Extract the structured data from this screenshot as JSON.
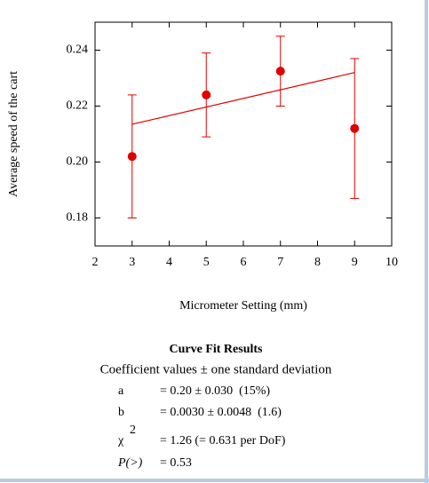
{
  "chart_data": {
    "type": "scatter",
    "x_label": "Micrometer Setting (mm)",
    "y_label": "Average speed of the cart",
    "series": [
      {
        "color": "#e00000",
        "x": [
          3,
          5,
          7,
          9
        ],
        "values": [
          0.202,
          0.224,
          0.2325,
          0.212
        ],
        "errors": [
          0.022,
          0.015,
          0.0125,
          0.025
        ]
      },
      {
        "type": "line",
        "color": "#e00000",
        "x": [
          3,
          9
        ],
        "values": [
          0.2135,
          0.232
        ]
      }
    ],
    "xlim": [
      2,
      10
    ],
    "xticks": [
      2,
      3,
      4,
      5,
      6,
      7,
      8,
      9,
      10
    ],
    "ylim": [
      0.17,
      0.25
    ],
    "yticks": [
      {
        "value": 0.18,
        "label": "0.18"
      },
      {
        "value": 0.2,
        "label": "0.20"
      },
      {
        "value": 0.22,
        "label": "0.22"
      },
      {
        "value": 0.24,
        "label": "0.24"
      }
    ],
    "grid": false
  },
  "fit_results": {
    "title": "Curve Fit Results",
    "subtitle": "Coefficient values ± one standard deviation",
    "rows": [
      {
        "label": "a",
        "value": "= 0.20 ± 0.030  (15%)"
      },
      {
        "label": "b",
        "value": "= 0.0030 ± 0.0048  (1.6)"
      },
      {
        "label": "χ",
        "superscript": "2",
        "value": "= 1.26 (= 0.631 per DoF)"
      },
      {
        "label": "P(>)",
        "value": "= 0.53"
      }
    ]
  }
}
